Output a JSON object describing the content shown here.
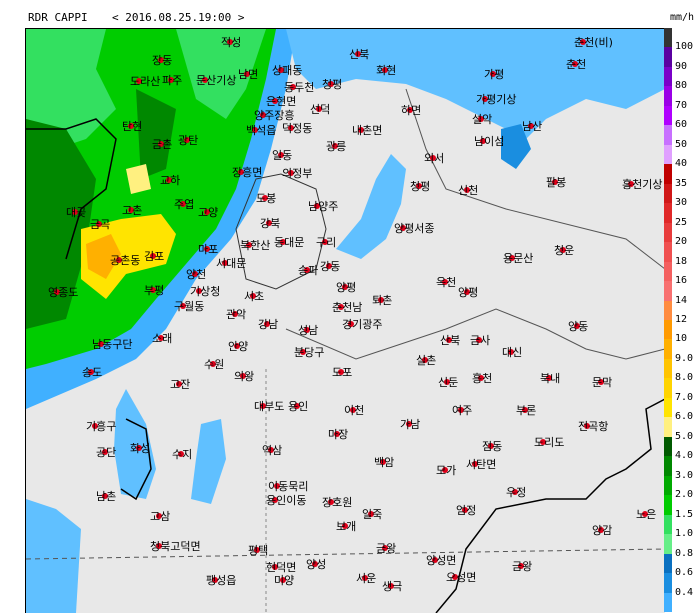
{
  "header": {
    "title": "RDR CAPPI",
    "prev": "<",
    "timestamp": "2016.08.25.19:00",
    "next": ">"
  },
  "legend": {
    "unit": "mm/h",
    "labels": [
      "100",
      "90",
      "80",
      "70",
      "60",
      "50",
      "40",
      "35",
      "30",
      "25",
      "20",
      "18",
      "16",
      "14",
      "12",
      "10",
      "9.0",
      "8.0",
      "7.0",
      "6.0",
      "5.0",
      "4.0",
      "3.0",
      "2.0",
      "1.5",
      "1.0",
      "0.8",
      "0.6",
      "0.4"
    ],
    "colors": [
      "#333333",
      "#5a00a0",
      "#7a00c8",
      "#9a00e6",
      "#b000ff",
      "#c870ff",
      "#e0a0ff",
      "#c00000",
      "#d01818",
      "#e02828",
      "#e83c3c",
      "#f05050",
      "#f46060",
      "#f87070",
      "#ff8c40",
      "#ff9a00",
      "#ffb000",
      "#ffc400",
      "#ffd400",
      "#ffe400",
      "#fff080",
      "#005a00",
      "#008800",
      "#00aa00",
      "#00cc00",
      "#33e060",
      "#66ee88",
      "#0a70c0",
      "#1a8ee0",
      "#40b0ff"
    ]
  },
  "cities": [
    "적성",
    "신북",
    "회현",
    "춘천(비)",
    "춘천",
    "장동",
    "도라산",
    "파주",
    "문산기상",
    "남면",
    "상패동",
    "동두천",
    "가평",
    "가평기상",
    "은현면",
    "양주장흥",
    "덕정동",
    "청평",
    "선덕",
    "하면",
    "설악",
    "남이섬",
    "남산",
    "탄현",
    "백석읍",
    "내촌면",
    "금촌",
    "광탄",
    "일동",
    "광릉",
    "외서",
    "의정부",
    "장흥면",
    "교하",
    "청평",
    "신천",
    "팔봉",
    "홍천기상",
    "도봉",
    "대곶",
    "금곡",
    "고촌",
    "주엽",
    "고양",
    "강북",
    "남양주",
    "양평서종",
    "북한산",
    "동대문",
    "구리",
    "김포",
    "공촌동",
    "서대문",
    "마포",
    "양천",
    "송파",
    "강동",
    "양평",
    "용문산",
    "청운",
    "영종도",
    "부평",
    "기상청",
    "서초",
    "춘천남",
    "퇴촌",
    "옥천",
    "양평",
    "구월동",
    "관악",
    "강남",
    "경기광주",
    "남동구단",
    "소래",
    "안양",
    "성남",
    "분당구",
    "산북",
    "금사",
    "대신",
    "양동",
    "송도",
    "실촌",
    "신둔",
    "흥천",
    "북내",
    "문막",
    "고잔",
    "도포",
    "수원",
    "의왕",
    "대부도",
    "기흥구",
    "용인",
    "이천",
    "여주",
    "부론",
    "전곡항",
    "공단",
    "화성",
    "수지",
    "역삼",
    "마장",
    "가남",
    "점동",
    "도리도",
    "남촌",
    "이동묵리",
    "백암",
    "모가",
    "서탄면",
    "용인이동",
    "장호원",
    "우정",
    "고삼",
    "일죽",
    "엄정",
    "노은",
    "양감",
    "청북고덕면",
    "평택",
    "양성",
    "보개",
    "금왕",
    "양성면",
    "오성면",
    "현덕면",
    "팽성읍",
    "미양",
    "서운",
    "생극",
    "금왕"
  ]
}
